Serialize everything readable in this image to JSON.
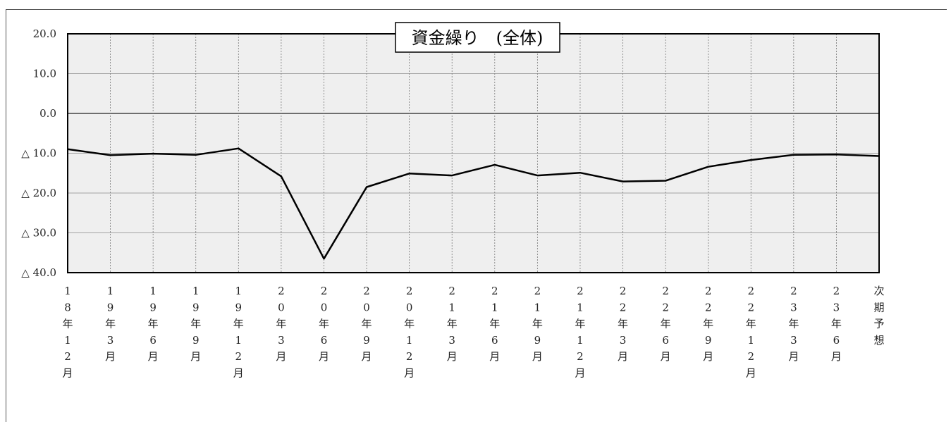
{
  "chart_data": {
    "type": "line",
    "title": "資金繰り　(全体)",
    "xlabel": "",
    "ylabel": "",
    "ylim": [
      -40,
      20
    ],
    "y_ticks": [
      20,
      10,
      0,
      -10,
      -20,
      -30,
      -40
    ],
    "y_tick_labels": [
      "20.0",
      "10.0",
      "0.0",
      "△ 10.0",
      "△ 20.0",
      "△ 30.0",
      "△ 40.0"
    ],
    "categories": [
      "18年12月",
      "19年3月",
      "19年6月",
      "19年9月",
      "19年12月",
      "20年3月",
      "20年6月",
      "20年9月",
      "20年12月",
      "21年3月",
      "21年6月",
      "21年9月",
      "21年12月",
      "22年3月",
      "22年6月",
      "22年9月",
      "22年12月",
      "23年3月",
      "23年6月",
      "次期予想"
    ],
    "series": [
      {
        "name": "",
        "values": [
          -9.0,
          -10.5,
          -10.1,
          -10.4,
          -8.8,
          -15.8,
          -36.5,
          -18.5,
          -15.1,
          -15.6,
          -12.9,
          -15.6,
          -14.9,
          -17.1,
          -16.9,
          -13.4,
          -11.7,
          -10.4,
          -10.3,
          -10.7
        ]
      }
    ],
    "grid": true,
    "colors": {
      "line": "#000000",
      "plot_bg": "#efefef",
      "grid": "#888888"
    }
  }
}
